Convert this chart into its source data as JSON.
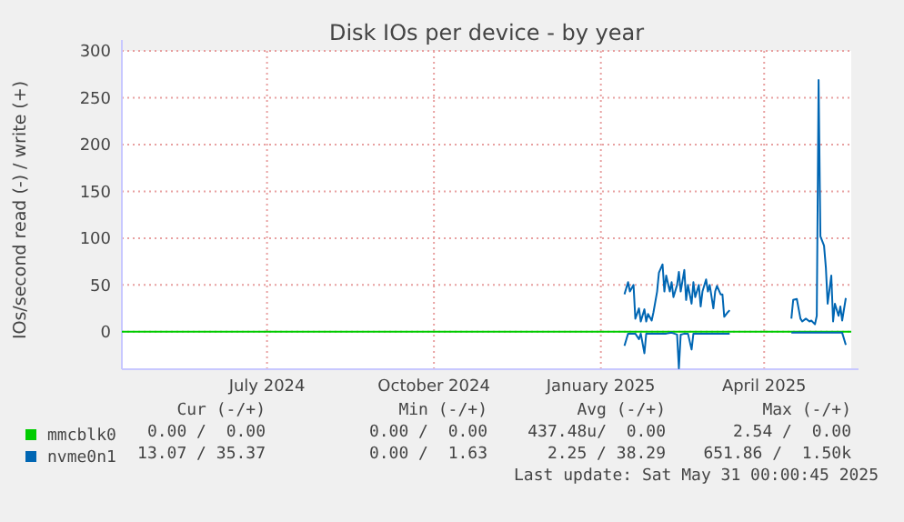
{
  "chart_data": {
    "type": "line",
    "title": "Disk IOs per device - by year",
    "ylabel": "IOs/second read (-) / write (+)",
    "xlim": [
      "2024-04-12",
      "2025-05-19"
    ],
    "xticks": [
      {
        "value": "2024-07-01",
        "label": "July 2024"
      },
      {
        "value": "2024-10-01",
        "label": "October 2024"
      },
      {
        "value": "2025-01-01",
        "label": "January 2025"
      },
      {
        "value": "2025-04-01",
        "label": "April 2025"
      }
    ],
    "ylim": [
      -40,
      300
    ],
    "yticks": [
      0,
      50,
      100,
      150,
      200,
      250,
      300
    ],
    "grid": true,
    "legend": "bottom",
    "series": [
      {
        "name": "mmcblk0",
        "color": "#00cc00",
        "x": [
          "2024-04-12",
          "2025-05-19"
        ],
        "values": [
          0,
          0
        ]
      },
      {
        "name": "nvme0n1",
        "color": "#0066b3",
        "x": [
          "2025-01-14",
          "2025-01-16",
          "2025-01-17",
          "2025-01-19",
          "2025-01-20",
          "2025-01-22",
          "2025-01-23",
          "2025-01-25",
          "2025-01-26",
          "2025-01-27",
          "2025-01-29",
          "2025-01-30",
          "2025-02-01",
          "2025-02-02",
          "2025-02-04",
          "2025-02-05",
          "2025-02-06",
          "2025-02-08",
          "2025-02-09",
          "2025-02-10",
          "2025-02-12",
          "2025-02-13",
          "2025-02-14",
          "2025-02-16",
          "2025-02-17",
          "2025-02-18",
          "2025-02-20",
          "2025-02-21",
          "2025-02-22",
          "2025-02-24",
          "2025-02-25",
          "2025-02-26",
          "2025-02-28",
          "2025-03-01",
          "2025-03-02",
          "2025-03-04",
          "2025-03-05",
          "2025-03-06",
          "2025-03-08",
          "2025-03-09",
          "2025-03-10",
          "2025-03-12",
          "2025-03-13",
          "2025-04-01",
          "2025-04-16",
          "2025-04-17",
          "2025-04-19",
          "2025-04-21",
          "2025-04-22",
          "2025-04-24",
          "2025-04-26",
          "2025-04-27",
          "2025-04-29",
          "2025-04-30",
          "2025-05-01",
          "2025-05-02",
          "2025-05-04",
          "2025-05-05",
          "2025-05-06",
          "2025-05-08",
          "2025-05-09",
          "2025-05-10",
          "2025-05-12",
          "2025-05-13",
          "2025-05-14",
          "2025-05-16"
        ],
        "values": [
          40,
          53,
          43,
          50,
          14,
          25,
          11,
          24,
          11,
          19,
          12,
          21,
          43,
          63,
          72,
          43,
          60,
          43,
          53,
          37,
          50,
          64,
          43,
          66,
          34,
          50,
          30,
          53,
          37,
          50,
          27,
          43,
          56,
          43,
          50,
          25,
          43,
          49,
          40,
          40,
          16,
          21,
          23,
          null,
          14,
          34,
          35,
          14,
          11,
          14,
          11,
          12,
          8,
          17,
          269,
          102,
          92,
          69,
          30,
          60,
          11,
          30,
          17,
          27,
          12,
          36
        ]
      },
      {
        "color": "#0066b3",
        "x": [
          "2025-01-14",
          "2025-01-16",
          "2025-01-20",
          "2025-01-22",
          "2025-01-23",
          "2025-01-25",
          "2025-01-26",
          "2025-01-30",
          "2025-02-02",
          "2025-02-06",
          "2025-02-09",
          "2025-02-12",
          "2025-02-13",
          "2025-02-14",
          "2025-02-16",
          "2025-02-18",
          "2025-02-20",
          "2025-02-21",
          "2025-02-25",
          "2025-03-01",
          "2025-03-08",
          "2025-03-13",
          "2025-04-01",
          "2025-04-16",
          "2025-04-24",
          "2025-05-01",
          "2025-05-08",
          "2025-05-14",
          "2025-05-16"
        ],
        "values": [
          -15,
          -2,
          -2,
          -8,
          -2,
          -23,
          -2,
          -2,
          -2,
          -2,
          -1,
          -3,
          -39,
          -3,
          -2,
          -2,
          -19,
          -2,
          -2,
          -2,
          -2,
          -2,
          null,
          -1,
          -1,
          -1,
          -1,
          -1,
          -14
        ]
      }
    ],
    "annotations": [
      "Cur (-/+)",
      "Min (-/+)",
      "Avg (-/+)",
      "Max (-/+)",
      "0.00 /  0.00",
      "0.00 /  0.00",
      "437.48u/  0.00",
      "2.54 /  0.00",
      "13.07 / 35.37",
      "0.00 /  1.63",
      "2.25 / 38.29",
      "651.86 /  1.50k",
      "Last update: Sat May 31 00:00:45 2025"
    ]
  }
}
